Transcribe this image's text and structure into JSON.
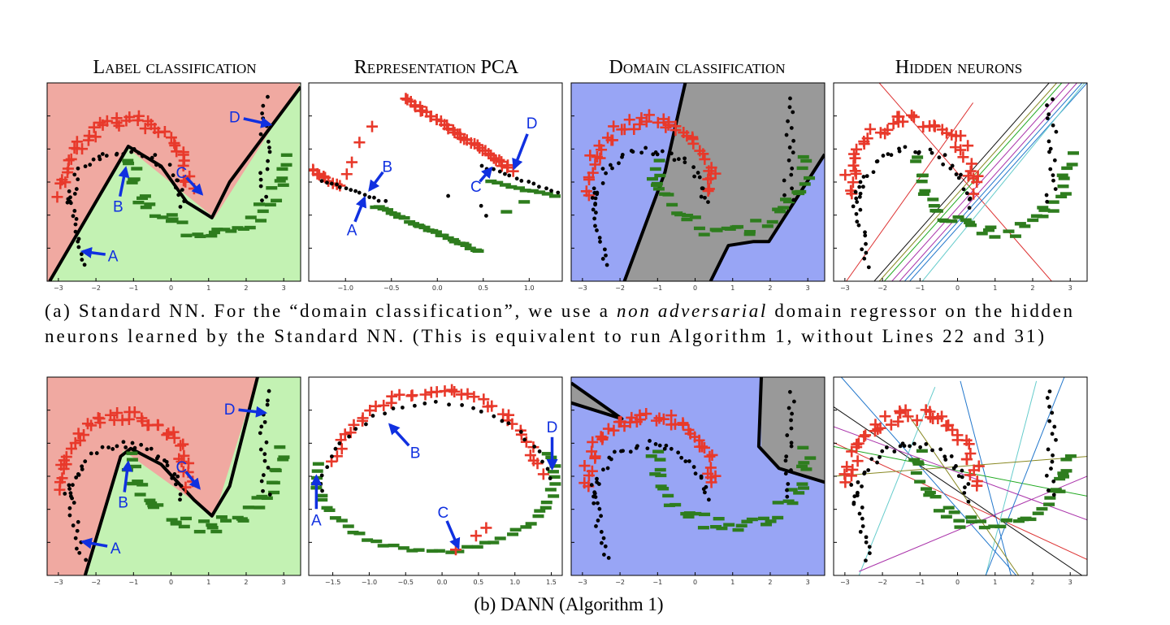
{
  "column_titles": [
    "Label classification",
    "Representation PCA",
    "Domain classification",
    "Hidden neurons"
  ],
  "rows": [
    {
      "caption": {
        "lines": [
          [
            {
              "text": "(a) Standard NN. For the “domain classification”, we use a "
            },
            {
              "text": "non adversarial",
              "italic": true
            },
            {
              "text": " domain regressor on the hidden"
            }
          ],
          [
            {
              "text": "neurons learned by the Standard NN. (This is equivalent to run Algorithm 1, without Lines 22 and 31)"
            }
          ]
        ]
      },
      "panels": [
        {
          "xlim": [
            -3.3,
            3.45
          ],
          "xticks": [
            {
              "value": -3,
              "label": "−3"
            },
            {
              "value": -2,
              "label": "−2"
            },
            {
              "value": -1,
              "label": "−1"
            },
            0,
            1,
            2,
            3
          ],
          "annotations": [
            "A",
            "B",
            "C",
            "D"
          ]
        },
        {
          "xlim": [
            -1.4,
            1.36
          ],
          "xticks": [
            {
              "value": -1,
              "label": "−1.0"
            },
            {
              "value": -0.5,
              "label": "−0.5"
            },
            {
              "value": 0,
              "label": "0.0"
            },
            {
              "value": 0.5,
              "label": "0.5"
            },
            {
              "value": 1,
              "label": "1.0"
            }
          ],
          "annotations": [
            "A",
            "B",
            "C",
            "D"
          ]
        },
        {
          "xlim": [
            -3.3,
            3.45
          ],
          "xticks": [
            {
              "value": -3,
              "label": "−3"
            },
            {
              "value": -2,
              "label": "−2"
            },
            {
              "value": -1,
              "label": "−1"
            },
            0,
            1,
            2,
            3
          ]
        },
        {
          "xlim": [
            -3.3,
            3.45
          ],
          "xticks": [
            {
              "value": -3,
              "label": "−3"
            },
            {
              "value": -2,
              "label": "−2"
            },
            {
              "value": -1,
              "label": "−1"
            },
            0,
            1,
            2,
            3
          ]
        }
      ]
    },
    {
      "caption": {
        "lines": [
          [
            {
              "text": "(b) DANN (Algorithm 1)"
            }
          ]
        ]
      },
      "panels": [
        {
          "xlim": [
            -3.3,
            3.45
          ],
          "xticks": [
            {
              "value": -3,
              "label": "−3"
            },
            {
              "value": -2,
              "label": "−2"
            },
            {
              "value": -1,
              "label": "−1"
            },
            0,
            1,
            2,
            3
          ],
          "annotations": [
            "A",
            "B",
            "C",
            "D"
          ]
        },
        {
          "xlim": [
            -1.83,
            1.65
          ],
          "xticks": [
            {
              "value": -1.5,
              "label": "−1.5"
            },
            {
              "value": -1,
              "label": "−1.0"
            },
            {
              "value": -0.5,
              "label": "−0.5"
            },
            {
              "value": 0,
              "label": "0.0"
            },
            {
              "value": 0.5,
              "label": "0.5"
            },
            {
              "value": 1,
              "label": "1.0"
            },
            {
              "value": 1.5,
              "label": "1.5"
            }
          ],
          "annotations": [
            "A",
            "B",
            "C",
            "D"
          ]
        },
        {
          "xlim": [
            -3.3,
            3.45
          ],
          "xticks": [
            {
              "value": -3,
              "label": "−3"
            },
            {
              "value": -2,
              "label": "−2"
            },
            {
              "value": -1,
              "label": "−1"
            },
            0,
            1,
            2,
            3
          ]
        },
        {
          "xlim": [
            -3.3,
            3.45
          ],
          "xticks": [
            {
              "value": -3,
              "label": "−3"
            },
            {
              "value": -2,
              "label": "−2"
            },
            {
              "value": -1,
              "label": "−1"
            },
            0,
            1,
            2,
            3
          ]
        }
      ]
    }
  ]
}
